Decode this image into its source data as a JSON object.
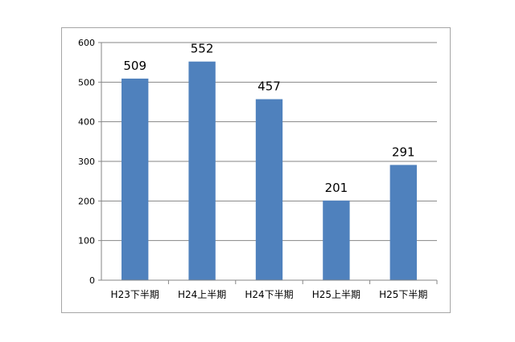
{
  "chart_data": {
    "type": "bar",
    "categories": [
      "H23下半期",
      "H24上半期",
      "H24下半期",
      "H25上半期",
      "H25下半期"
    ],
    "values": [
      509,
      552,
      457,
      201,
      291
    ],
    "ylim": [
      0,
      600
    ],
    "yticks": [
      0,
      100,
      200,
      300,
      400,
      500,
      600
    ],
    "grid": true,
    "data_labels": true,
    "bar_color": "#4f81bd",
    "grid_color": "#868686"
  }
}
